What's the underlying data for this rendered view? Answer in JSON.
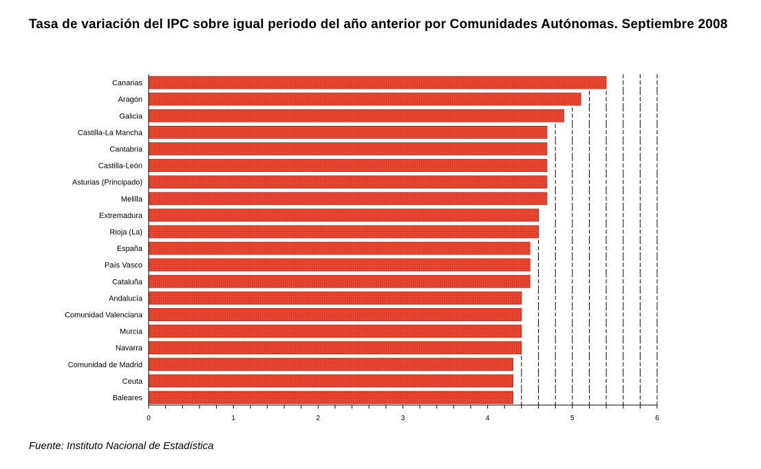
{
  "title": "Tasa de variación del IPC sobre igual periodo del año anterior por Comunidades Autónomas. Septiembre 2008",
  "source": "Fuente: Instituto Nacional de Estadística",
  "colors": {
    "bar_fill": "#E5432E",
    "bar_stroke": "#B32A18"
  },
  "chart_data": {
    "type": "bar",
    "orientation": "horizontal",
    "title": "Tasa de variación del IPC sobre igual periodo del año anterior por Comunidades Autónomas. Septiembre 2008",
    "categories": [
      "Canarias",
      "Aragón",
      "Galicia",
      "Castilla-La Mancha",
      "Cantabria",
      "Castilla-León",
      "Asturias (Principado)",
      "Melilla",
      "Extremadura",
      "Rioja (La)",
      "España",
      "País Vasco",
      "Cataluña",
      "Andalucía",
      "Comunidad Valenciana",
      "Murcia",
      "Navarra",
      "Comunidad de Madrid",
      "Ceuta",
      "Baleares"
    ],
    "values": [
      5.4,
      5.1,
      4.9,
      4.7,
      4.7,
      4.7,
      4.7,
      4.7,
      4.6,
      4.6,
      4.5,
      4.5,
      4.5,
      4.4,
      4.4,
      4.4,
      4.4,
      4.3,
      4.3,
      4.3
    ],
    "xlim": [
      0,
      6
    ],
    "xticks": [
      0,
      1,
      2,
      3,
      4,
      5,
      6
    ],
    "xlabel": "",
    "ylabel": "",
    "gridlines": "dashed vertical every 0.2 to the right of each bar"
  }
}
